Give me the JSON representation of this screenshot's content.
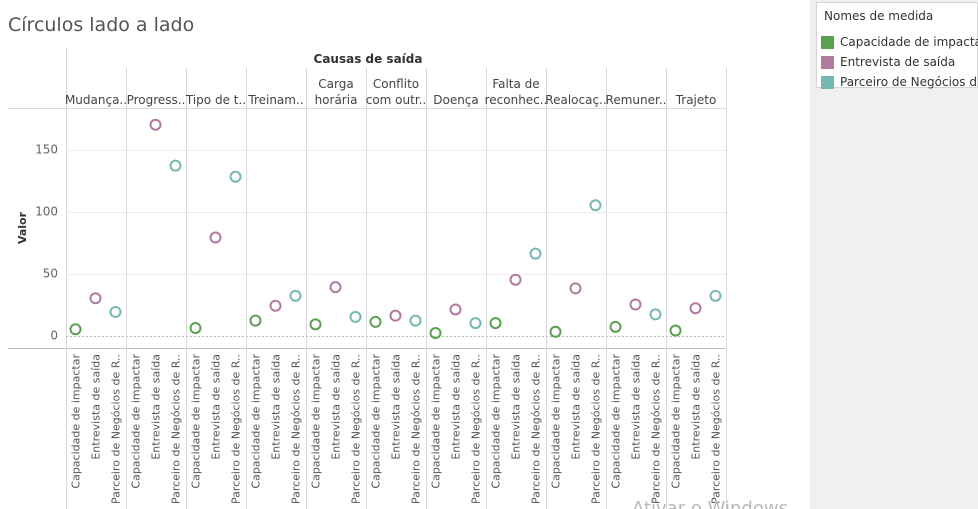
{
  "title": "Círculos lado a lado",
  "legend": {
    "title": "Nomes de medida",
    "items": [
      {
        "label": "Capacidade de impactar",
        "color": "#59a14f"
      },
      {
        "label": "Entrevista de saída",
        "color": "#b07aa1"
      },
      {
        "label": "Parceiro de Negócios d..",
        "color": "#76b7b2"
      }
    ]
  },
  "chart_data": {
    "type": "scatter",
    "mark": "open-circle",
    "column_header": "Causas de saída",
    "ylabel": "Valor",
    "ylim": [
      -10,
      185
    ],
    "yticks": [
      0,
      50,
      100,
      150
    ],
    "categories": [
      [
        "Mudança.."
      ],
      [
        "Progress.."
      ],
      [
        "Tipo de t.."
      ],
      [
        "Treinam.."
      ],
      [
        "Carga",
        "horária"
      ],
      [
        "Conflito",
        "com outr.."
      ],
      [
        "Doença"
      ],
      [
        "Falta de",
        "reconhec.."
      ],
      [
        "Realocaç.."
      ],
      [
        "Remuner.."
      ],
      [
        "Trajeto"
      ]
    ],
    "measure_labels": [
      "Capacidade de impactar",
      "Entrevista de saída",
      "Parceiro de Negócios de R.."
    ],
    "series": [
      {
        "name": "Capacidade de impactar",
        "color": "#59a14f",
        "values": [
          5,
          null,
          6,
          12,
          9,
          11,
          2,
          10,
          3,
          7,
          4
        ]
      },
      {
        "name": "Entrevista de saída",
        "color": "#b07aa1",
        "values": [
          30,
          170,
          79,
          24,
          39,
          16,
          21,
          45,
          38,
          25,
          22
        ]
      },
      {
        "name": "Parceiro de Negócios d..",
        "color": "#76b7b2",
        "values": [
          19,
          137,
          128,
          32,
          15,
          12,
          10,
          66,
          105,
          17,
          32
        ]
      }
    ],
    "overlay_text": "Ativar o Windows"
  }
}
